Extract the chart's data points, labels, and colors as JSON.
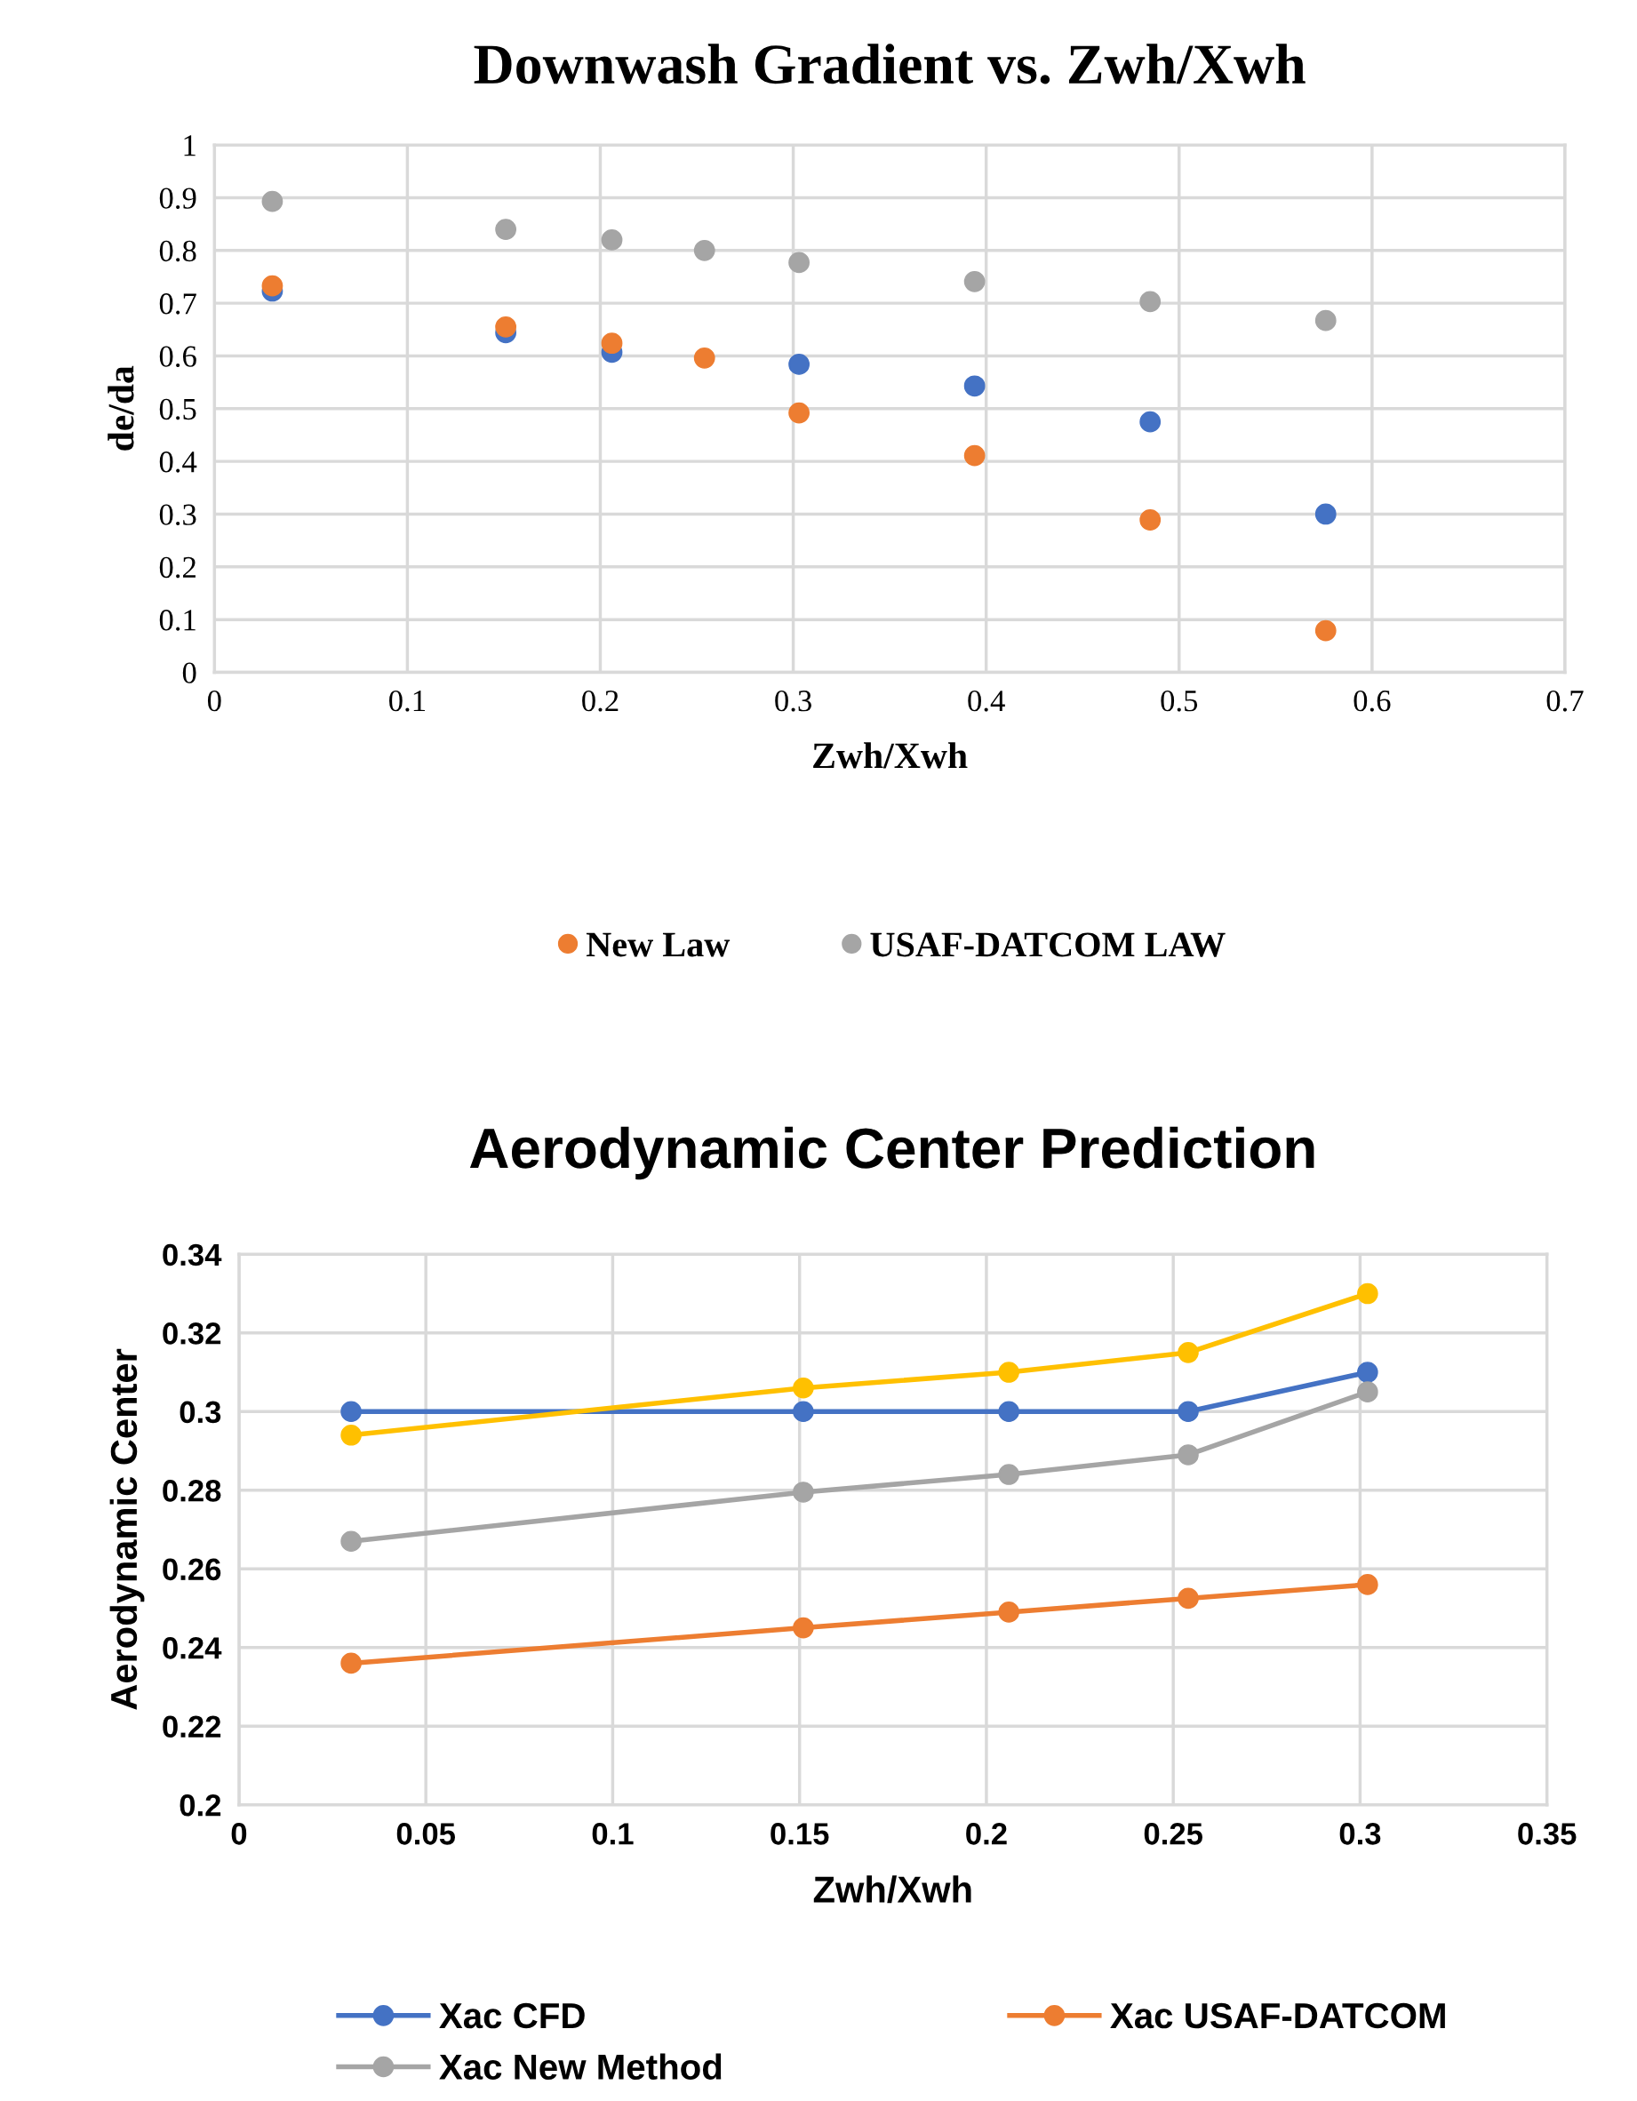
{
  "chart_data": [
    {
      "type": "scatter",
      "title": "Downwash Gradient vs. Zwh/Xwh",
      "xlabel": "Zwh/Xwh",
      "ylabel": "de/da",
      "x": [
        0.03,
        0.151,
        0.206,
        0.254,
        0.303,
        0.394,
        0.485,
        0.576
      ],
      "series": [
        {
          "color": "#4472c4",
          "values": [
            0.723,
            0.644,
            0.607,
            null,
            0.584,
            0.543,
            0.475,
            0.3
          ]
        },
        {
          "name": "New Law",
          "color": "#ed7d31",
          "values": [
            0.733,
            0.655,
            0.624,
            0.596,
            0.492,
            0.411,
            0.289,
            0.079
          ]
        },
        {
          "name": "USAF-DATCOM LAW",
          "color": "#a5a5a5",
          "values": [
            0.893,
            0.84,
            0.82,
            0.8,
            0.777,
            0.741,
            0.703,
            0.667
          ]
        }
      ],
      "xlim": [
        0,
        0.7
      ],
      "xticks": [
        0,
        0.1,
        0.2,
        0.3,
        0.4,
        0.5,
        0.6,
        0.7
      ],
      "ylim": [
        0,
        1
      ],
      "yticks": [
        0,
        0.1,
        0.2,
        0.3,
        0.4,
        0.5,
        0.6,
        0.7,
        0.8,
        0.9,
        1
      ],
      "grid": true,
      "legend": "bottom",
      "marker": "circle"
    },
    {
      "type": "line",
      "title": "Aerodynamic Center Prediction",
      "xlabel": "Zwh/Xwh",
      "ylabel": "Aerodynamic Center",
      "x": [
        0.03,
        0.151,
        0.206,
        0.254,
        0.302
      ],
      "series": [
        {
          "name": "Xac CFD",
          "color": "#4472c4",
          "values": [
            0.3,
            0.3,
            0.3,
            0.3,
            0.31
          ]
        },
        {
          "name": "Xac USAF-DATCOM",
          "color": "#ed7d31",
          "values": [
            0.236,
            0.245,
            0.249,
            0.2525,
            0.256
          ]
        },
        {
          "name": "Xac New Method",
          "color": "#a5a5a5",
          "values": [
            0.267,
            0.2795,
            0.284,
            0.289,
            0.305
          ]
        },
        {
          "color": "#ffc000",
          "values": [
            0.294,
            0.306,
            0.31,
            0.315,
            0.33
          ]
        }
      ],
      "xlim": [
        0,
        0.35
      ],
      "xticks": [
        0,
        0.05,
        0.1,
        0.15,
        0.2,
        0.25,
        0.3,
        0.35
      ],
      "ylim": [
        0.2,
        0.34
      ],
      "yticks": [
        0.2,
        0.22,
        0.24,
        0.26,
        0.28,
        0.3,
        0.32,
        0.34
      ],
      "grid": true,
      "legend": "bottom",
      "marker": "circle",
      "line_style": "solid"
    }
  ]
}
